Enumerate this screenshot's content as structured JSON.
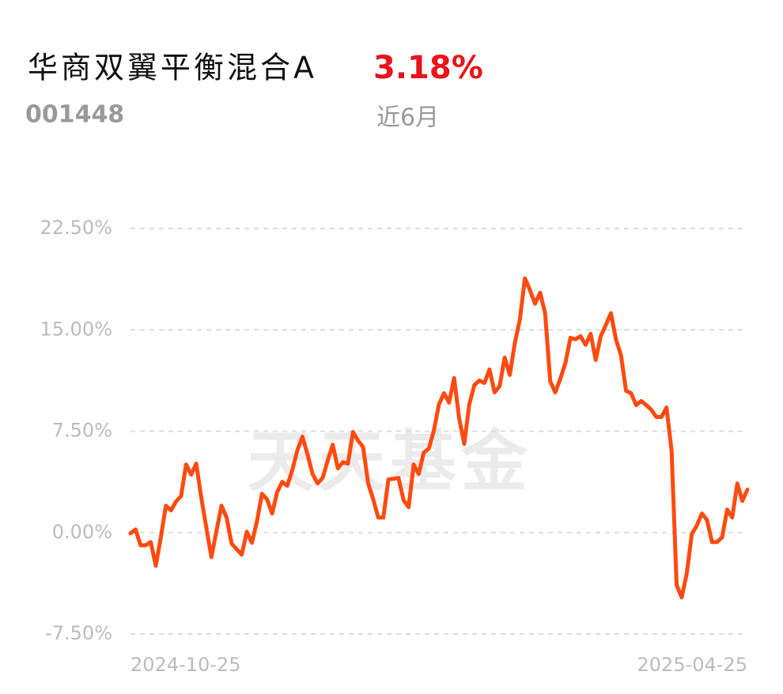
{
  "chart_data": {
    "type": "line",
    "title": "华商双翼平衡混合A",
    "return_text": "3.18%",
    "code": "001448",
    "period": "近6月",
    "watermark": "天天基金",
    "color": "#ff4a10",
    "return_color": "#e8141b",
    "grid": true,
    "ylim": [
      -7.5,
      22.5
    ],
    "yticks": [
      {
        "value": -7.5,
        "label": "-7.50%"
      },
      {
        "value": 0,
        "label": "0.00%"
      },
      {
        "value": 7.5,
        "label": "7.50%"
      },
      {
        "value": 15,
        "label": "15.00%"
      },
      {
        "value": 22.5,
        "label": "22.50%"
      }
    ],
    "categories": [
      "2024-10-25",
      null,
      null,
      null,
      null,
      null,
      null,
      null,
      null,
      null,
      null,
      null,
      null,
      null,
      null,
      null,
      null,
      null,
      null,
      null,
      null,
      null,
      null,
      null,
      null,
      null,
      null,
      null,
      null,
      null,
      null,
      null,
      null,
      null,
      null,
      null,
      null,
      null,
      null,
      null,
      null,
      null,
      null,
      null,
      null,
      null,
      null,
      null,
      null,
      null,
      null,
      null,
      null,
      null,
      null,
      null,
      null,
      null,
      null,
      null,
      null,
      null,
      null,
      null,
      null,
      null,
      null,
      null,
      null,
      null,
      null,
      null,
      null,
      null,
      null,
      null,
      null,
      null,
      null,
      null,
      null,
      null,
      null,
      null,
      null,
      null,
      null,
      null,
      null,
      null,
      null,
      null,
      null,
      null,
      null,
      null,
      null,
      null,
      null,
      null,
      null,
      null,
      null,
      null,
      null,
      null,
      null,
      null,
      null,
      null,
      null,
      null,
      null,
      null,
      null,
      null,
      null,
      null,
      null,
      null,
      null,
      null,
      "2025-04-25"
    ],
    "values": [
      -0.06,
      0.23,
      -0.94,
      -0.94,
      -0.7,
      -2.46,
      -0.35,
      1.99,
      1.64,
      2.29,
      2.7,
      5.04,
      4.28,
      5.1,
      2.58,
      0.35,
      -1.82,
      0.12,
      1.99,
      1.11,
      -0.82,
      -1.23,
      -1.64,
      0.06,
      -0.76,
      0.82,
      2.87,
      2.46,
      1.41,
      2.99,
      3.75,
      3.46,
      4.63,
      6.09,
      7.09,
      5.8,
      4.34,
      3.63,
      4.04,
      5.33,
      6.5,
      4.75,
      5.21,
      5.1,
      7.44,
      6.8,
      6.33,
      3.63,
      2.46,
      1.11,
      1.11,
      3.93,
      3.98,
      4.04,
      2.4,
      1.87,
      5.04,
      4.34,
      5.92,
      6.21,
      7.56,
      9.49,
      10.31,
      9.61,
      11.43,
      8.44,
      6.56,
      9.49,
      10.9,
      11.25,
      11.07,
      12.07,
      10.37,
      10.84,
      12.95,
      11.66,
      14.0,
      15.76,
      18.81,
      17.93,
      16.93,
      17.75,
      16.23,
      11.19,
      10.37,
      11.37,
      12.54,
      14.41,
      14.3,
      14.53,
      13.89,
      14.71,
      12.77,
      14.53,
      15.35,
      16.23,
      14.3,
      13.12,
      10.49,
      10.31,
      9.43,
      9.73,
      9.43,
      9.08,
      8.55,
      8.55,
      9.26,
      6.09,
      -3.87,
      -4.8,
      -3.05,
      -0.12,
      0.53,
      1.41,
      0.94,
      -0.7,
      -0.7,
      -0.35,
      1.7,
      1.11,
      3.63,
      2.34,
      3.18
    ]
  }
}
